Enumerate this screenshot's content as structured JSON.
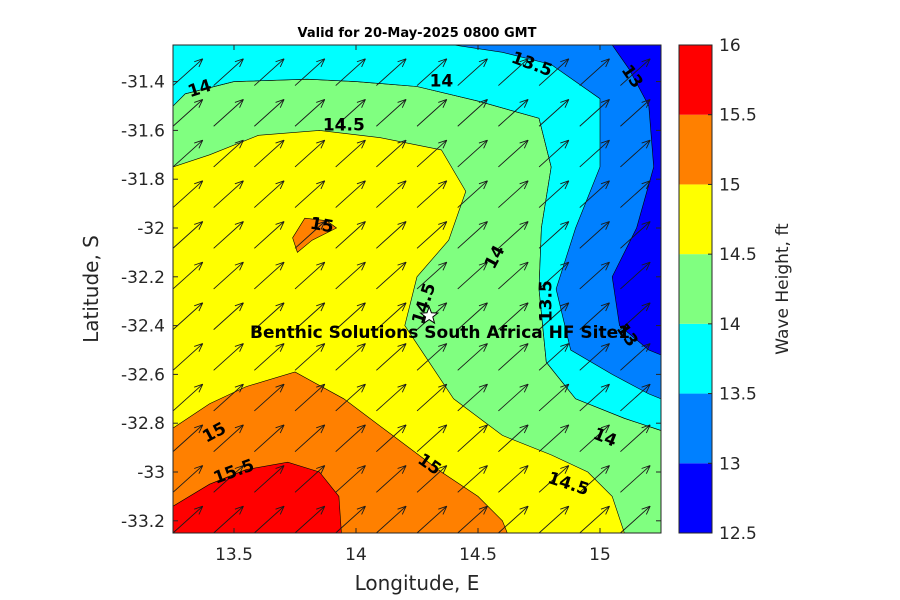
{
  "chart_data": {
    "type": "contour",
    "title": "Valid for 20-May-2025 0800 GMT",
    "xlabel": "Longitude, E",
    "ylabel": "Latitude, S",
    "xlim": [
      13.25,
      15.25
    ],
    "ylim": [
      -33.25,
      -31.25
    ],
    "xticks": [
      {
        "value": 13.5,
        "label": "13.5"
      },
      {
        "value": 14.0,
        "label": "14"
      },
      {
        "value": 14.5,
        "label": "14.5"
      },
      {
        "value": 15.0,
        "label": "15"
      }
    ],
    "yticks": [
      {
        "value": -31.4,
        "label": "-31.4"
      },
      {
        "value": -31.6,
        "label": "-31.6"
      },
      {
        "value": -31.8,
        "label": "-31.8"
      },
      {
        "value": -32.0,
        "label": "-32"
      },
      {
        "value": -32.2,
        "label": "-32.2"
      },
      {
        "value": -32.4,
        "label": "-32.4"
      },
      {
        "value": -32.6,
        "label": "-32.6"
      },
      {
        "value": -32.8,
        "label": "-32.8"
      },
      {
        "value": -33.0,
        "label": "-33"
      },
      {
        "value": -33.2,
        "label": "-33.2"
      }
    ],
    "colorbar": {
      "label": "Wave Height, ft",
      "levels": [
        {
          "min": 12.5,
          "max": 13.0,
          "color": "#0000ff"
        },
        {
          "min": 13.0,
          "max": 13.5,
          "color": "#0080ff"
        },
        {
          "min": 13.5,
          "max": 14.0,
          "color": "#00ffff"
        },
        {
          "min": 14.0,
          "max": 14.5,
          "color": "#80ff80"
        },
        {
          "min": 14.5,
          "max": 15.0,
          "color": "#ffff00"
        },
        {
          "min": 15.0,
          "max": 15.5,
          "color": "#ff8000"
        },
        {
          "min": 15.5,
          "max": 16.0,
          "color": "#ff0000"
        }
      ],
      "ticks": [
        {
          "value": 12.5,
          "label": "12.5"
        },
        {
          "value": 13.0,
          "label": "13"
        },
        {
          "value": 13.5,
          "label": "13.5"
        },
        {
          "value": 14.0,
          "label": "14"
        },
        {
          "value": 14.5,
          "label": "14.5"
        },
        {
          "value": 15.0,
          "label": "15"
        },
        {
          "value": 15.5,
          "label": "15.5"
        },
        {
          "value": 16.0,
          "label": "16"
        }
      ]
    },
    "regions": [
      {
        "level": 14.0,
        "color": "#80ff80",
        "points": [
          [
            13.25,
            -31.5
          ],
          [
            13.3,
            -31.45
          ],
          [
            13.5,
            -31.4
          ],
          [
            13.8,
            -31.39
          ],
          [
            14.0,
            -31.4
          ],
          [
            14.25,
            -31.42
          ],
          [
            14.5,
            -31.48
          ],
          [
            14.75,
            -31.55
          ],
          [
            14.8,
            -31.75
          ],
          [
            14.76,
            -32.0
          ],
          [
            14.75,
            -32.25
          ],
          [
            14.78,
            -32.55
          ],
          [
            14.9,
            -32.7
          ],
          [
            15.1,
            -32.78
          ],
          [
            15.25,
            -32.83
          ],
          [
            15.25,
            -33.25
          ],
          [
            13.25,
            -33.25
          ]
        ]
      },
      {
        "level": 14.5,
        "color": "#ffff00",
        "points": [
          [
            13.25,
            -31.75
          ],
          [
            13.4,
            -31.7
          ],
          [
            13.6,
            -31.62
          ],
          [
            13.85,
            -31.6
          ],
          [
            14.1,
            -31.63
          ],
          [
            14.35,
            -31.68
          ],
          [
            14.45,
            -31.85
          ],
          [
            14.38,
            -32.05
          ],
          [
            14.25,
            -32.2
          ],
          [
            14.2,
            -32.4
          ],
          [
            14.3,
            -32.55
          ],
          [
            14.4,
            -32.7
          ],
          [
            14.6,
            -32.85
          ],
          [
            14.8,
            -32.93
          ],
          [
            14.95,
            -33.0
          ],
          [
            15.05,
            -33.1
          ],
          [
            15.1,
            -33.25
          ],
          [
            13.25,
            -33.25
          ]
        ]
      },
      {
        "level": 15.0,
        "color": "#ff8000",
        "points": [
          [
            13.25,
            -32.82
          ],
          [
            13.4,
            -32.72
          ],
          [
            13.55,
            -32.65
          ],
          [
            13.75,
            -32.59
          ],
          [
            13.95,
            -32.7
          ],
          [
            14.15,
            -32.85
          ],
          [
            14.35,
            -33.0
          ],
          [
            14.5,
            -33.1
          ],
          [
            14.6,
            -33.2
          ],
          [
            14.62,
            -33.25
          ],
          [
            13.25,
            -33.25
          ]
        ]
      },
      {
        "level": 15.0,
        "color": "#ff8000",
        "points": [
          [
            13.79,
            -31.96
          ],
          [
            13.88,
            -31.97
          ],
          [
            13.92,
            -32.0
          ],
          [
            13.82,
            -32.05
          ],
          [
            13.76,
            -32.1
          ],
          [
            13.74,
            -32.04
          ]
        ]
      },
      {
        "level": 15.5,
        "color": "#ff0000",
        "points": [
          [
            13.25,
            -33.14
          ],
          [
            13.4,
            -33.05
          ],
          [
            13.55,
            -32.99
          ],
          [
            13.72,
            -32.96
          ],
          [
            13.85,
            -33.0
          ],
          [
            13.93,
            -33.1
          ],
          [
            13.94,
            -33.25
          ],
          [
            13.25,
            -33.25
          ]
        ]
      },
      {
        "level": 13.5,
        "color": "#00ffff",
        "points": [
          [
            14.5,
            -31.48
          ],
          [
            14.25,
            -31.42
          ],
          [
            14.0,
            -31.4
          ],
          [
            13.8,
            -31.39
          ],
          [
            13.5,
            -31.4
          ],
          [
            13.3,
            -31.45
          ],
          [
            13.25,
            -31.5
          ],
          [
            13.25,
            -31.25
          ],
          [
            15.25,
            -31.25
          ],
          [
            15.25,
            -32.83
          ],
          [
            15.1,
            -32.78
          ],
          [
            14.9,
            -32.7
          ],
          [
            14.78,
            -32.55
          ],
          [
            14.75,
            -32.25
          ],
          [
            14.76,
            -32.0
          ],
          [
            14.8,
            -31.75
          ],
          [
            14.75,
            -31.55
          ]
        ]
      },
      {
        "level": 13.0,
        "color": "#0080ff",
        "points": [
          [
            14.4,
            -31.25
          ],
          [
            14.6,
            -31.28
          ],
          [
            14.8,
            -31.33
          ],
          [
            15.0,
            -31.47
          ],
          [
            15.0,
            -31.75
          ],
          [
            14.9,
            -32.0
          ],
          [
            14.82,
            -32.25
          ],
          [
            14.88,
            -32.5
          ],
          [
            15.05,
            -32.6
          ],
          [
            15.2,
            -32.68
          ],
          [
            15.25,
            -32.7
          ],
          [
            15.25,
            -31.25
          ]
        ]
      },
      {
        "level": 12.5,
        "color": "#0000ff",
        "points": [
          [
            15.05,
            -31.25
          ],
          [
            15.12,
            -31.35
          ],
          [
            15.2,
            -31.5
          ],
          [
            15.22,
            -31.75
          ],
          [
            15.15,
            -32.0
          ],
          [
            15.05,
            -32.2
          ],
          [
            15.08,
            -32.4
          ],
          [
            15.2,
            -32.5
          ],
          [
            15.25,
            -32.52
          ],
          [
            15.25,
            -31.25
          ]
        ]
      }
    ],
    "contour_labels": [
      {
        "text": "14",
        "x": 13.36,
        "y": -31.43,
        "angle": -18
      },
      {
        "text": "14",
        "x": 14.35,
        "y": -31.4,
        "angle": 0
      },
      {
        "text": "13.5",
        "x": 14.72,
        "y": -31.33,
        "angle": 20
      },
      {
        "text": "13",
        "x": 15.13,
        "y": -31.38,
        "angle": 55
      },
      {
        "text": "14.5",
        "x": 13.95,
        "y": -31.58,
        "angle": 0
      },
      {
        "text": "15",
        "x": 13.86,
        "y": -31.99,
        "angle": 10
      },
      {
        "text": "14",
        "x": 14.57,
        "y": -32.12,
        "angle": -62
      },
      {
        "text": "13.5",
        "x": 14.78,
        "y": -32.3,
        "angle": -90
      },
      {
        "text": "14.5",
        "x": 14.28,
        "y": -32.31,
        "angle": -72
      },
      {
        "text": "13",
        "x": 15.11,
        "y": -32.44,
        "angle": 55
      },
      {
        "text": "15",
        "x": 13.42,
        "y": -32.84,
        "angle": -28
      },
      {
        "text": "15.5",
        "x": 13.5,
        "y": -33.0,
        "angle": -20
      },
      {
        "text": "15",
        "x": 14.3,
        "y": -32.97,
        "angle": 35
      },
      {
        "text": "14",
        "x": 15.02,
        "y": -32.86,
        "angle": 22
      },
      {
        "text": "14.5",
        "x": 14.87,
        "y": -33.05,
        "angle": 18
      }
    ],
    "site": {
      "name": "Benthic Solutions South Africa HF Site1",
      "lon": 14.3,
      "lat": -32.36
    },
    "vectors": {
      "lon_start": 13.25,
      "lon_step": 0.1667,
      "lat_start": -33.25,
      "lat_step": 0.1667,
      "angle_deg": 42,
      "marker": "arrow"
    }
  }
}
